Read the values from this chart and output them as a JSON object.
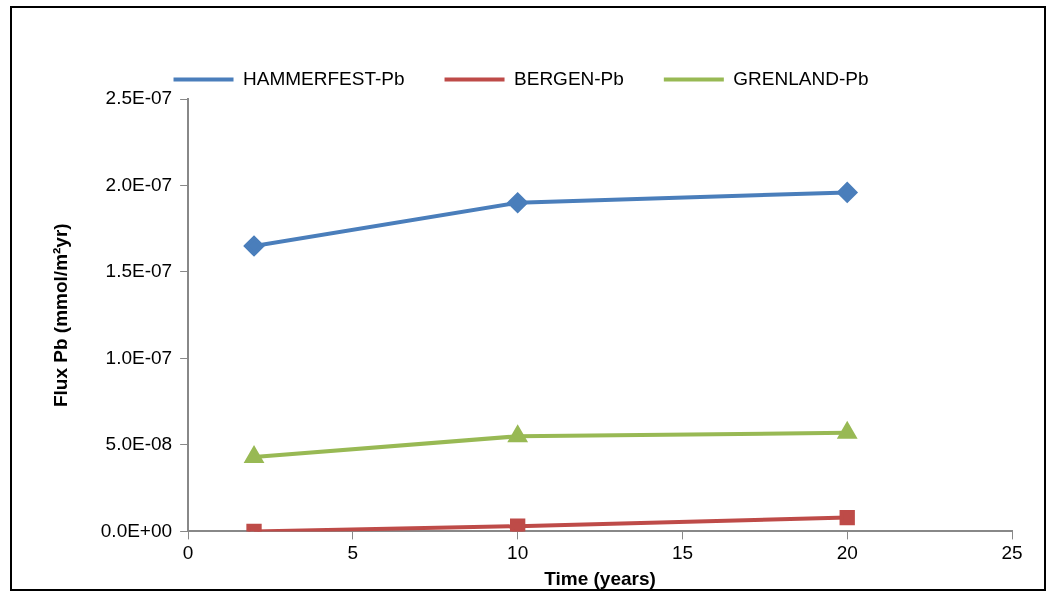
{
  "chart_data": {
    "type": "line",
    "xlabel": "Time (years)",
    "ylabel": "Flux Pb (mmol/m²yr)",
    "x": [
      2,
      10,
      20
    ],
    "series": [
      {
        "name": "HAMMERFEST-Pb",
        "color": "#4a7ebb",
        "marker": "diamond",
        "values": [
          1.65e-07,
          1.9e-07,
          1.96e-07
        ]
      },
      {
        "name": "BERGEN-Pb",
        "color": "#be4b48",
        "marker": "square",
        "values": [
          0.0,
          3e-09,
          8e-09
        ]
      },
      {
        "name": "GRENLAND-Pb",
        "color": "#98b954",
        "marker": "triangle",
        "values": [
          4.3e-08,
          5.5e-08,
          5.7e-08
        ]
      }
    ],
    "xlim": [
      0,
      25
    ],
    "xticks": [
      0,
      5,
      10,
      15,
      20,
      25
    ],
    "ylim": [
      0,
      2.5e-07
    ],
    "yticks": [
      {
        "value": 0,
        "label": "0.0E+00"
      },
      {
        "value": 5e-08,
        "label": "5.0E-08"
      },
      {
        "value": 1e-07,
        "label": "1.0E-07"
      },
      {
        "value": 1.5e-07,
        "label": "1.5E-07"
      },
      {
        "value": 2e-07,
        "label": "2.0E-07"
      },
      {
        "value": 2.5e-07,
        "label": "2.5E-07"
      }
    ],
    "grid": false,
    "legend": "top",
    "line_style": "solid"
  }
}
